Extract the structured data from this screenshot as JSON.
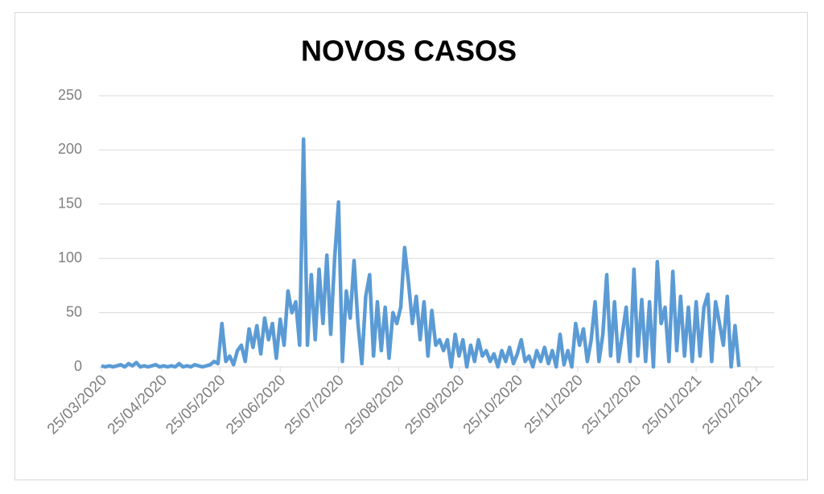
{
  "chart_data": {
    "type": "line",
    "title": "NOVOS CASOS",
    "color": "#5b9bd5",
    "grid": true,
    "xlim": [
      "25/03/2020",
      "25/02/2021"
    ],
    "xticks": [
      "25/03/2020",
      "25/04/2020",
      "25/05/2020",
      "25/06/2020",
      "25/07/2020",
      "25/08/2020",
      "25/09/2020",
      "25/10/2020",
      "25/11/2020",
      "25/12/2020",
      "25/01/2021",
      "25/02/2021"
    ],
    "ylim": [
      0,
      250
    ],
    "yticks": [
      0,
      50,
      100,
      150,
      200,
      250
    ],
    "x": [
      "25/03/2020",
      "27/03/2020",
      "29/03/2020",
      "31/03/2020",
      "02/04/2020",
      "04/04/2020",
      "06/04/2020",
      "08/04/2020",
      "10/04/2020",
      "12/04/2020",
      "14/04/2020",
      "16/04/2020",
      "18/04/2020",
      "20/04/2020",
      "22/04/2020",
      "24/04/2020",
      "26/04/2020",
      "28/04/2020",
      "30/04/2020",
      "02/05/2020",
      "04/05/2020",
      "06/05/2020",
      "08/05/2020",
      "10/05/2020",
      "12/05/2020",
      "14/05/2020",
      "16/05/2020",
      "18/05/2020",
      "20/05/2020",
      "22/05/2020",
      "24/05/2020",
      "26/05/2020",
      "28/05/2020",
      "30/05/2020",
      "01/06/2020",
      "03/06/2020",
      "05/06/2020",
      "07/06/2020",
      "09/06/2020",
      "11/06/2020",
      "13/06/2020",
      "15/06/2020",
      "17/06/2020",
      "19/06/2020",
      "21/06/2020",
      "23/06/2020",
      "25/06/2020",
      "27/06/2020",
      "29/06/2020",
      "01/07/2020",
      "03/07/2020",
      "05/07/2020",
      "07/07/2020",
      "09/07/2020",
      "11/07/2020",
      "13/07/2020",
      "15/07/2020",
      "17/07/2020",
      "19/07/2020",
      "21/07/2020",
      "23/07/2020",
      "25/07/2020",
      "27/07/2020",
      "29/07/2020",
      "31/07/2020",
      "02/08/2020",
      "04/08/2020",
      "06/08/2020",
      "08/08/2020",
      "10/08/2020",
      "12/08/2020",
      "14/08/2020",
      "16/08/2020",
      "18/08/2020",
      "20/08/2020",
      "22/08/2020",
      "24/08/2020",
      "26/08/2020",
      "28/08/2020",
      "30/08/2020",
      "01/09/2020",
      "03/09/2020",
      "05/09/2020",
      "07/09/2020",
      "09/09/2020",
      "11/09/2020",
      "13/09/2020",
      "15/09/2020",
      "17/09/2020",
      "19/09/2020",
      "21/09/2020",
      "23/09/2020",
      "25/09/2020",
      "27/09/2020",
      "29/09/2020",
      "01/10/2020",
      "03/10/2020",
      "05/10/2020",
      "07/10/2020",
      "09/10/2020",
      "11/10/2020",
      "13/10/2020",
      "15/10/2020",
      "17/10/2020",
      "19/10/2020",
      "21/10/2020",
      "23/10/2020",
      "25/10/2020",
      "27/10/2020",
      "29/10/2020",
      "31/10/2020",
      "02/11/2020",
      "04/11/2020",
      "06/11/2020",
      "08/11/2020",
      "10/11/2020",
      "12/11/2020",
      "14/11/2020",
      "16/11/2020",
      "18/11/2020",
      "20/11/2020",
      "22/11/2020",
      "24/11/2020",
      "26/11/2020",
      "28/11/2020",
      "30/11/2020",
      "02/12/2020",
      "04/12/2020",
      "06/12/2020",
      "08/12/2020",
      "10/12/2020",
      "12/12/2020",
      "14/12/2020",
      "16/12/2020",
      "18/12/2020",
      "20/12/2020",
      "22/12/2020",
      "24/12/2020",
      "26/12/2020",
      "28/12/2020",
      "30/12/2020",
      "01/01/2021",
      "03/01/2021",
      "05/01/2021",
      "07/01/2021",
      "09/01/2021",
      "11/01/2021",
      "13/01/2021",
      "15/01/2021",
      "17/01/2021",
      "19/01/2021",
      "21/01/2021",
      "23/01/2021",
      "25/01/2021",
      "27/01/2021",
      "29/01/2021",
      "31/01/2021",
      "02/02/2021",
      "04/02/2021",
      "06/02/2021",
      "08/02/2021",
      "10/02/2021",
      "12/02/2021",
      "14/02/2021",
      "16/02/2021"
    ],
    "values": [
      1,
      0,
      1,
      0,
      1,
      2,
      0,
      3,
      1,
      4,
      0,
      1,
      0,
      1,
      2,
      0,
      1,
      0,
      1,
      0,
      3,
      0,
      1,
      0,
      2,
      1,
      0,
      1,
      2,
      5,
      3,
      40,
      5,
      10,
      2,
      15,
      20,
      5,
      35,
      18,
      38,
      12,
      45,
      25,
      40,
      8,
      44,
      20,
      70,
      50,
      60,
      20,
      210,
      20,
      85,
      25,
      90,
      40,
      103,
      30,
      100,
      152,
      5,
      70,
      45,
      98,
      40,
      3,
      65,
      85,
      10,
      60,
      15,
      55,
      8,
      50,
      40,
      55,
      110,
      78,
      40,
      65,
      25,
      60,
      10,
      52,
      20,
      25,
      15,
      25,
      0,
      30,
      10,
      25,
      0,
      20,
      5,
      25,
      10,
      15,
      5,
      12,
      0,
      15,
      5,
      18,
      3,
      12,
      25,
      5,
      10,
      0,
      15,
      5,
      18,
      3,
      15,
      0,
      30,
      2,
      15,
      0,
      40,
      20,
      35,
      5,
      25,
      60,
      5,
      30,
      85,
      10,
      60,
      5,
      30,
      55,
      5,
      90,
      10,
      62,
      5,
      60,
      0,
      97,
      40,
      55,
      5,
      88,
      15,
      65,
      10,
      55,
      5,
      60,
      10,
      55,
      67,
      5,
      60,
      40,
      20,
      65,
      0,
      38,
      0
    ]
  }
}
